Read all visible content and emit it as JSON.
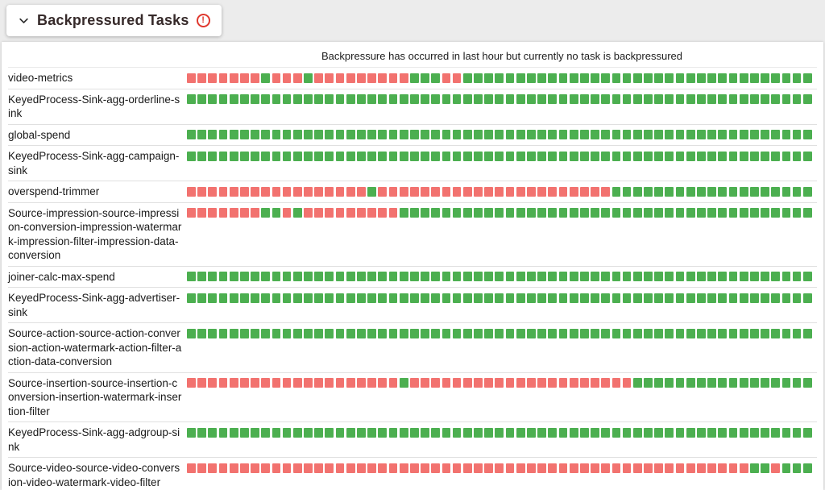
{
  "header": {
    "title": "Backpressured Tasks",
    "chevron_icon": "chevron-down-icon",
    "alert_icon": "error-circle-icon"
  },
  "subtitle": "Backpressure has occurred in last hour but currently no task is backpressured",
  "colors": {
    "ok": "#4caf50",
    "backpressured": "#f2726f"
  },
  "legend": {
    "G": "ok",
    "R": "backpressured"
  },
  "tasks": [
    {
      "name": "video-metrics",
      "runs": [
        {
          "s": "R",
          "n": 7
        },
        {
          "s": "G",
          "n": 1
        },
        {
          "s": "R",
          "n": 3
        },
        {
          "s": "G",
          "n": 1
        },
        {
          "s": "R",
          "n": 9
        },
        {
          "s": "G",
          "n": 3
        },
        {
          "s": "R",
          "n": 2
        },
        {
          "s": "G",
          "n": 33
        }
      ]
    },
    {
      "name": "KeyedProcess-Sink-agg-orderline-sink",
      "runs": [
        {
          "s": "G",
          "n": 59
        }
      ]
    },
    {
      "name": "global-spend",
      "runs": [
        {
          "s": "G",
          "n": 59
        }
      ]
    },
    {
      "name": "KeyedProcess-Sink-agg-campaign-sink",
      "runs": [
        {
          "s": "G",
          "n": 59
        }
      ]
    },
    {
      "name": "overspend-trimmer",
      "runs": [
        {
          "s": "R",
          "n": 17
        },
        {
          "s": "G",
          "n": 1
        },
        {
          "s": "R",
          "n": 22
        },
        {
          "s": "G",
          "n": 19
        }
      ]
    },
    {
      "name": "Source-impression-source-impression-conversion-impression-watermark-impression-filter-impression-data-conversion",
      "runs": [
        {
          "s": "R",
          "n": 7
        },
        {
          "s": "G",
          "n": 2
        },
        {
          "s": "R",
          "n": 1
        },
        {
          "s": "G",
          "n": 1
        },
        {
          "s": "R",
          "n": 9
        },
        {
          "s": "G",
          "n": 39
        }
      ]
    },
    {
      "name": "joiner-calc-max-spend",
      "runs": [
        {
          "s": "G",
          "n": 59
        }
      ]
    },
    {
      "name": "KeyedProcess-Sink-agg-advertiser-sink",
      "runs": [
        {
          "s": "G",
          "n": 59
        }
      ]
    },
    {
      "name": "Source-action-source-action-conversion-action-watermark-action-filter-action-data-conversion",
      "runs": [
        {
          "s": "G",
          "n": 59
        }
      ]
    },
    {
      "name": "Source-insertion-source-insertion-conversion-insertion-watermark-insertion-filter",
      "runs": [
        {
          "s": "R",
          "n": 20
        },
        {
          "s": "G",
          "n": 1
        },
        {
          "s": "R",
          "n": 21
        },
        {
          "s": "G",
          "n": 17
        }
      ]
    },
    {
      "name": "KeyedProcess-Sink-agg-adgroup-sink",
      "runs": [
        {
          "s": "G",
          "n": 59
        }
      ]
    },
    {
      "name": "Source-video-source-video-conversion-video-watermark-video-filter",
      "runs": [
        {
          "s": "R",
          "n": 53
        },
        {
          "s": "G",
          "n": 2
        },
        {
          "s": "R",
          "n": 1
        },
        {
          "s": "G",
          "n": 3
        }
      ]
    }
  ]
}
